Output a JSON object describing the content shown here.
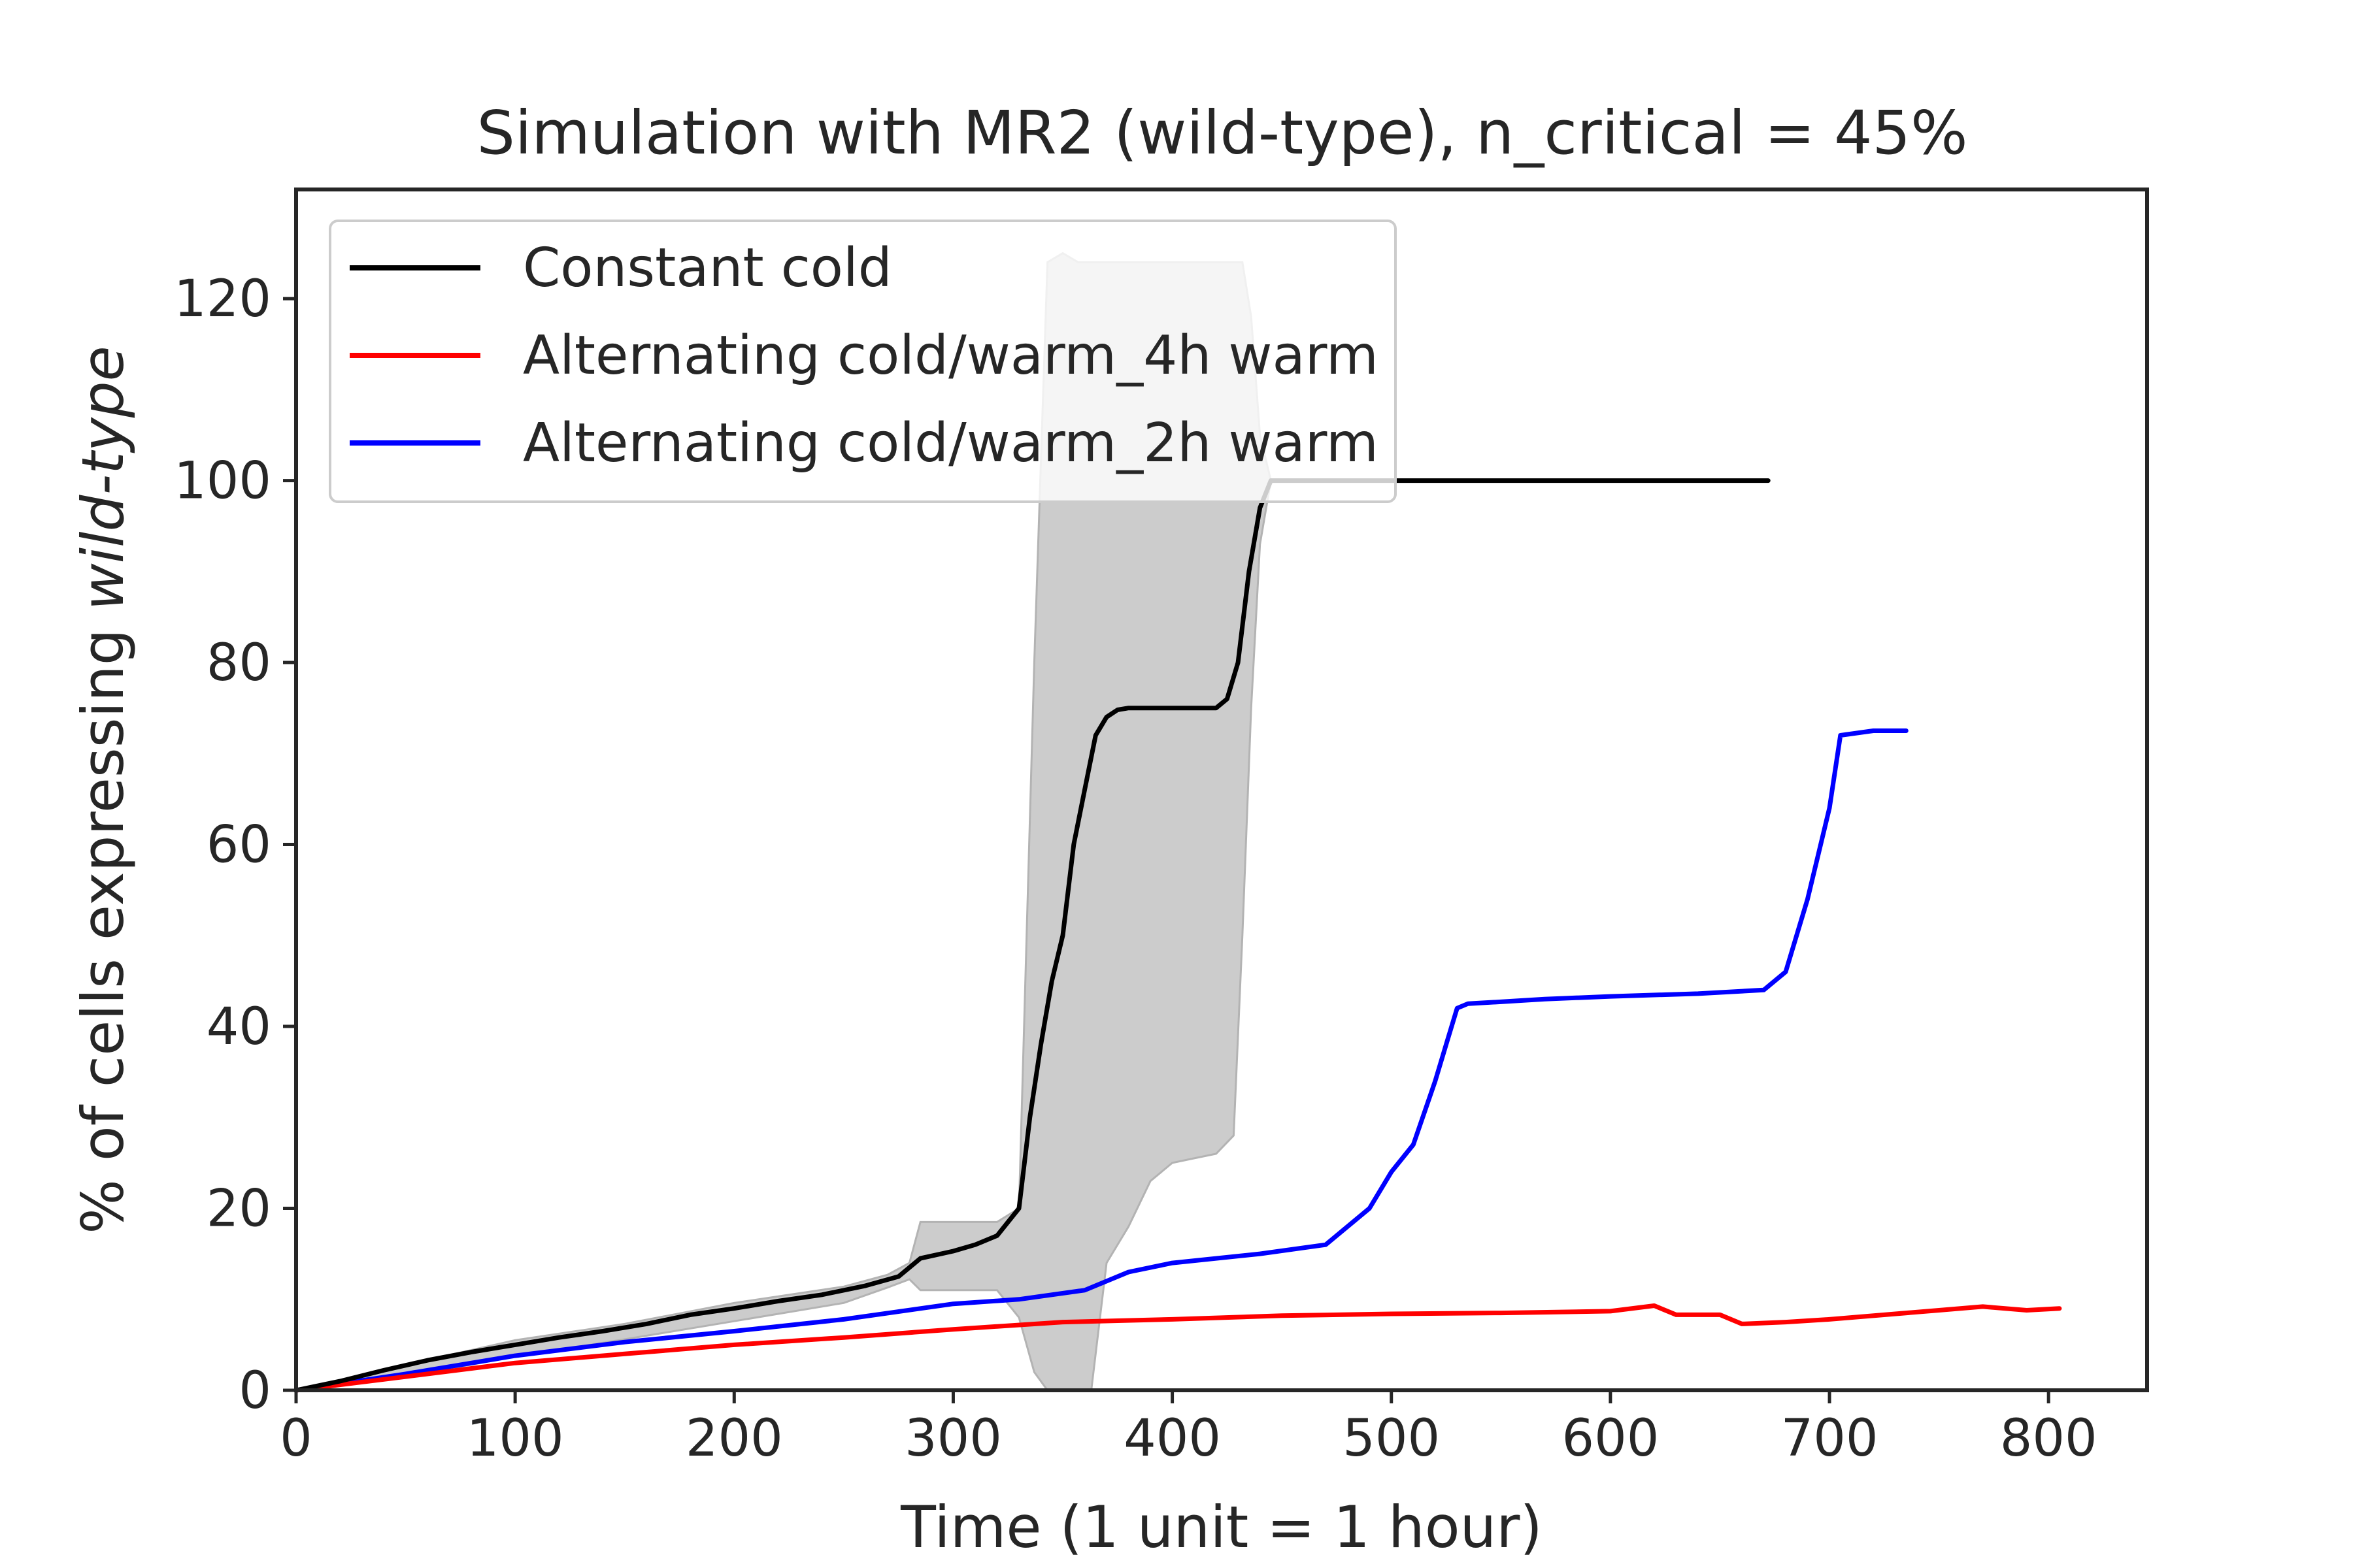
{
  "chart_data": {
    "type": "line",
    "title": "Simulation with MR2 (wild-type), n_critical = 45%",
    "xlabel": "Time (1 unit = 1 hour)",
    "ylabel_prefix": "% of cells expressing ",
    "ylabel_italic": "wild-type",
    "xlim": [
      0,
      845
    ],
    "ylim": [
      0,
      132
    ],
    "xticks": [
      0,
      100,
      200,
      300,
      400,
      500,
      600,
      700,
      800
    ],
    "yticks": [
      0,
      20,
      40,
      60,
      80,
      100,
      120
    ],
    "grid": false,
    "legend_position": "top-left",
    "series": [
      {
        "name": "Constant cold",
        "color": "#000000",
        "x": [
          0,
          20,
          40,
          60,
          80,
          100,
          120,
          140,
          160,
          180,
          200,
          220,
          240,
          260,
          275,
          285,
          300,
          310,
          320,
          330,
          335,
          340,
          345,
          350,
          355,
          360,
          365,
          370,
          375,
          380,
          390,
          400,
          410,
          420,
          425,
          430,
          435,
          440,
          445,
          460,
          500,
          550,
          600,
          650,
          672
        ],
        "y": [
          0,
          1,
          2.2,
          3.3,
          4.2,
          5,
          5.8,
          6.5,
          7.3,
          8.3,
          9,
          9.8,
          10.5,
          11.5,
          12.5,
          14.5,
          15.3,
          16,
          17,
          20,
          30,
          38,
          45,
          50,
          60,
          66,
          72,
          74,
          74.8,
          75,
          75,
          75,
          75,
          75,
          76,
          80,
          90,
          97,
          100,
          100,
          100,
          100,
          100,
          100,
          100
        ]
      },
      {
        "name": "Alternating cold/warm_4h warm",
        "color": "#ff0000",
        "x": [
          0,
          50,
          100,
          150,
          200,
          250,
          300,
          350,
          400,
          450,
          500,
          550,
          600,
          620,
          630,
          650,
          660,
          680,
          700,
          750,
          770,
          790,
          805
        ],
        "y": [
          0,
          1.5,
          3,
          4,
          5,
          5.8,
          6.7,
          7.5,
          7.8,
          8.2,
          8.4,
          8.5,
          8.7,
          9.3,
          8.3,
          8.3,
          7.3,
          7.5,
          7.8,
          8.8,
          9.2,
          8.8,
          9
        ]
      },
      {
        "name": "Alternating cold/warm_2h warm",
        "color": "#0000ff",
        "x": [
          0,
          50,
          100,
          150,
          200,
          250,
          300,
          330,
          360,
          380,
          400,
          440,
          470,
          490,
          500,
          510,
          520,
          525,
          530,
          535,
          550,
          570,
          600,
          640,
          670,
          680,
          690,
          700,
          705,
          720,
          735
        ],
        "y": [
          0,
          1.8,
          3.8,
          5.3,
          6.5,
          7.8,
          9.5,
          10,
          11,
          13,
          14,
          15,
          16,
          20,
          24,
          27,
          34,
          38,
          42,
          42.5,
          42.7,
          43,
          43.3,
          43.6,
          44,
          46,
          54,
          64,
          72,
          72.5,
          72.5
        ]
      }
    ],
    "band": {
      "x": [
        0,
        50,
        100,
        150,
        200,
        250,
        270,
        280,
        285,
        300,
        320,
        330,
        337,
        343,
        350,
        357,
        363,
        370,
        380,
        390,
        400,
        410,
        420,
        428,
        432,
        436,
        440,
        445
      ],
      "upper": [
        0,
        2.8,
        5.5,
        7.3,
        9.6,
        11.4,
        12.7,
        14,
        18.5,
        18.5,
        18.5,
        20,
        80,
        124,
        125,
        124,
        124,
        124,
        124,
        124,
        124,
        124,
        124,
        124,
        124,
        118,
        105,
        100
      ],
      "lower": [
        0,
        1.5,
        3.7,
        5.6,
        7.6,
        9.6,
        11.3,
        12.2,
        11,
        11,
        11,
        8,
        2,
        0,
        0,
        0,
        0,
        14,
        18,
        23,
        25,
        25.5,
        26,
        28,
        50,
        75,
        93,
        100
      ]
    }
  }
}
